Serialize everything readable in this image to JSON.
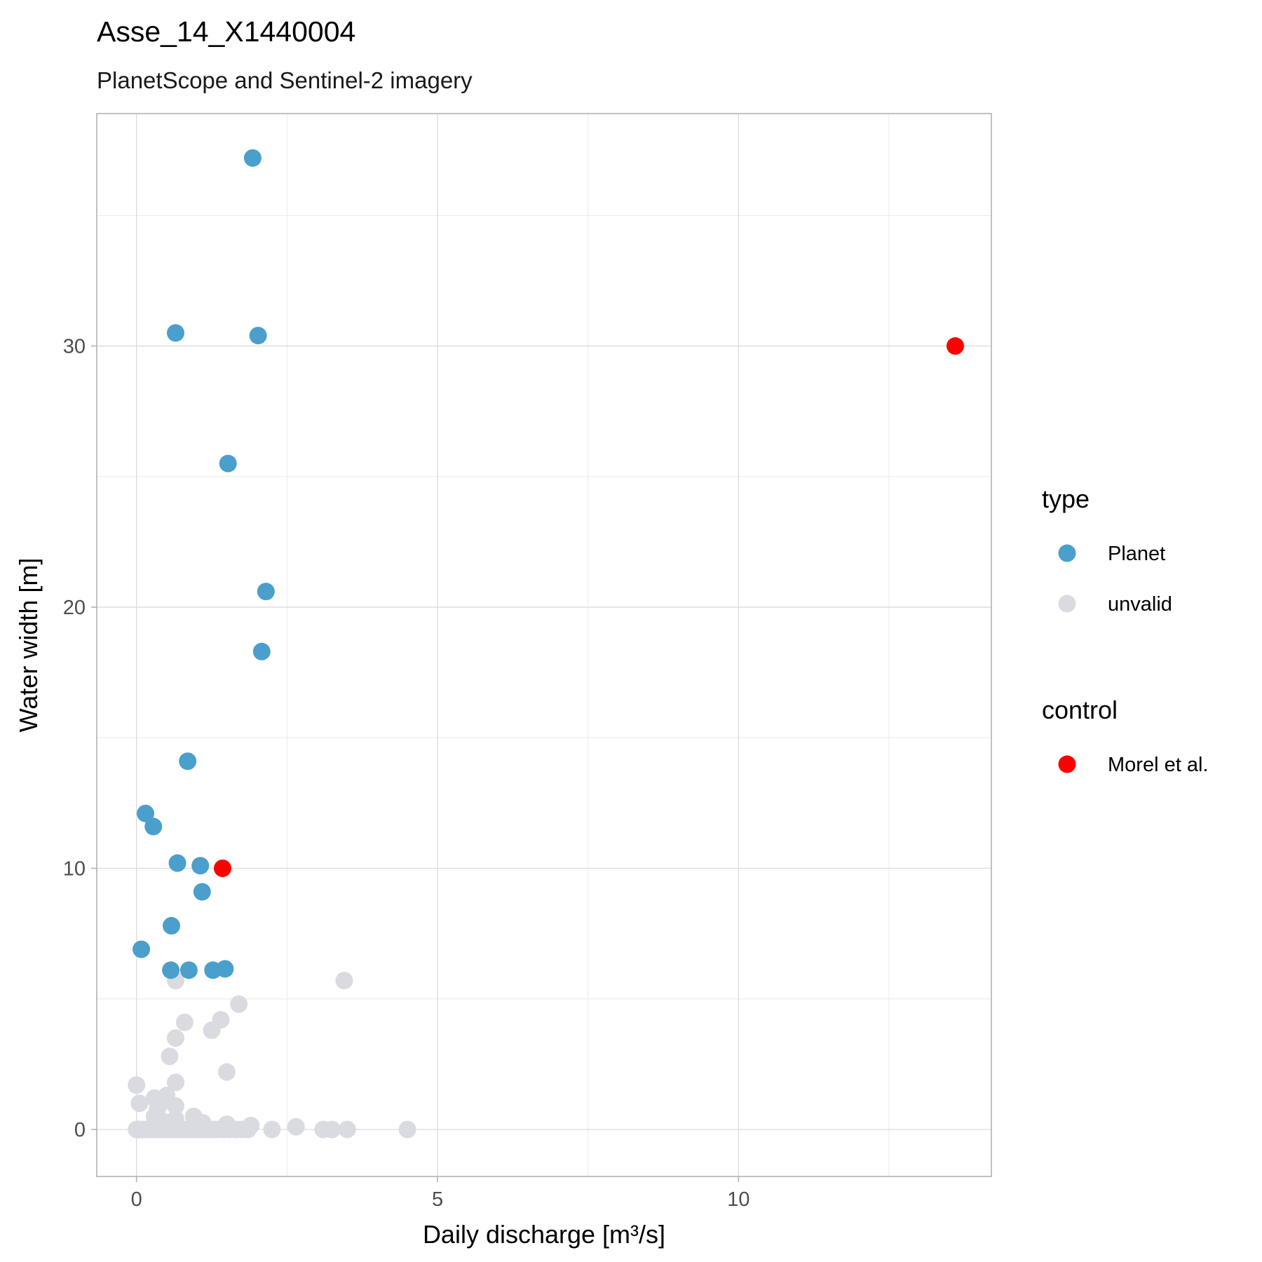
{
  "chart_data": {
    "type": "scatter",
    "title": "Asse_14_X1440004",
    "subtitle": "PlanetScope and Sentinel-2 imagery",
    "xlabel": "Daily discharge [m³/s]",
    "ylabel": "Water width [m]",
    "xlim": [
      -0.66,
      14.2
    ],
    "ylim": [
      -1.8,
      38.9
    ],
    "x_ticks": [
      0,
      5,
      10
    ],
    "x_tick_labels": [
      "0",
      "5",
      "10"
    ],
    "x_minor_ticks": [
      2.5,
      7.5,
      12.5
    ],
    "y_ticks": [
      0,
      10,
      20,
      30
    ],
    "y_tick_labels": [
      "0",
      "10",
      "20",
      "30"
    ],
    "y_minor_ticks": [
      5,
      15,
      25,
      35
    ],
    "grid": true,
    "legend_position": "right",
    "legends": [
      {
        "title": "type",
        "entries": [
          {
            "label": "Planet",
            "color": "#4a9fcc"
          },
          {
            "label": "unvalid",
            "color": "#d9dbe0"
          }
        ]
      },
      {
        "title": "control",
        "entries": [
          {
            "label": "Morel et al.",
            "color": "#ff0000"
          }
        ]
      }
    ],
    "series": [
      {
        "name": "unvalid",
        "color": "#d9dbe0",
        "points": [
          [
            0,
            0
          ],
          [
            0.02,
            0
          ],
          [
            0.05,
            0
          ],
          [
            0.08,
            0
          ],
          [
            0.1,
            0
          ],
          [
            0.15,
            0
          ],
          [
            0.2,
            0
          ],
          [
            0.25,
            0
          ],
          [
            0.3,
            0
          ],
          [
            0.35,
            0
          ],
          [
            0.4,
            0
          ],
          [
            0.45,
            0
          ],
          [
            0.5,
            0
          ],
          [
            0.55,
            0
          ],
          [
            0.6,
            0
          ],
          [
            0.65,
            0
          ],
          [
            0.7,
            0
          ],
          [
            0.75,
            0
          ],
          [
            0.8,
            0
          ],
          [
            0.85,
            0
          ],
          [
            0.9,
            0
          ],
          [
            0.95,
            0
          ],
          [
            1.0,
            0
          ],
          [
            1.05,
            0
          ],
          [
            1.1,
            0
          ],
          [
            1.15,
            0
          ],
          [
            1.2,
            0
          ],
          [
            1.25,
            0
          ],
          [
            1.3,
            0
          ],
          [
            1.35,
            0
          ],
          [
            1.45,
            0
          ],
          [
            1.55,
            0
          ],
          [
            1.65,
            0
          ],
          [
            1.75,
            0
          ],
          [
            1.85,
            0
          ],
          [
            2.25,
            0
          ],
          [
            3.1,
            0
          ],
          [
            3.25,
            0
          ],
          [
            3.5,
            0
          ],
          [
            4.5,
            0
          ],
          [
            2.65,
            0.1
          ],
          [
            1.5,
            0.2
          ],
          [
            1.9,
            0.15
          ],
          [
            1.1,
            0.25
          ],
          [
            0.95,
            0.5
          ],
          [
            0.3,
            0.2
          ],
          [
            0.45,
            0.3
          ],
          [
            0.65,
            0.4
          ],
          [
            0.3,
            0.5
          ],
          [
            0.35,
            0.8
          ],
          [
            0.65,
            0.9
          ],
          [
            0.4,
            1.0
          ],
          [
            0.05,
            1.0
          ],
          [
            0.3,
            1.2
          ],
          [
            0.5,
            1.3
          ],
          [
            0.0,
            1.7
          ],
          [
            0.65,
            1.8
          ],
          [
            1.5,
            2.2
          ],
          [
            0.55,
            2.8
          ],
          [
            0.65,
            3.5
          ],
          [
            1.25,
            3.8
          ],
          [
            0.8,
            4.1
          ],
          [
            1.4,
            4.2
          ],
          [
            1.7,
            4.8
          ],
          [
            0.65,
            5.7
          ],
          [
            3.45,
            5.7
          ]
        ]
      },
      {
        "name": "Planet",
        "color": "#4a9fcc",
        "points": [
          [
            1.93,
            37.2
          ],
          [
            0.65,
            30.5
          ],
          [
            2.02,
            30.4
          ],
          [
            1.52,
            25.5
          ],
          [
            2.15,
            20.6
          ],
          [
            2.08,
            18.3
          ],
          [
            0.85,
            14.1
          ],
          [
            0.15,
            12.1
          ],
          [
            0.28,
            11.6
          ],
          [
            0.68,
            10.2
          ],
          [
            1.06,
            10.1
          ],
          [
            1.09,
            9.1
          ],
          [
            0.58,
            7.8
          ],
          [
            0.08,
            6.9
          ],
          [
            0.57,
            6.1
          ],
          [
            0.87,
            6.1
          ],
          [
            1.27,
            6.1
          ],
          [
            1.47,
            6.15
          ]
        ]
      },
      {
        "name": "Morel et al.",
        "color": "#ff0000",
        "points": [
          [
            1.43,
            10.0
          ],
          [
            13.6,
            30.0
          ]
        ]
      }
    ]
  }
}
